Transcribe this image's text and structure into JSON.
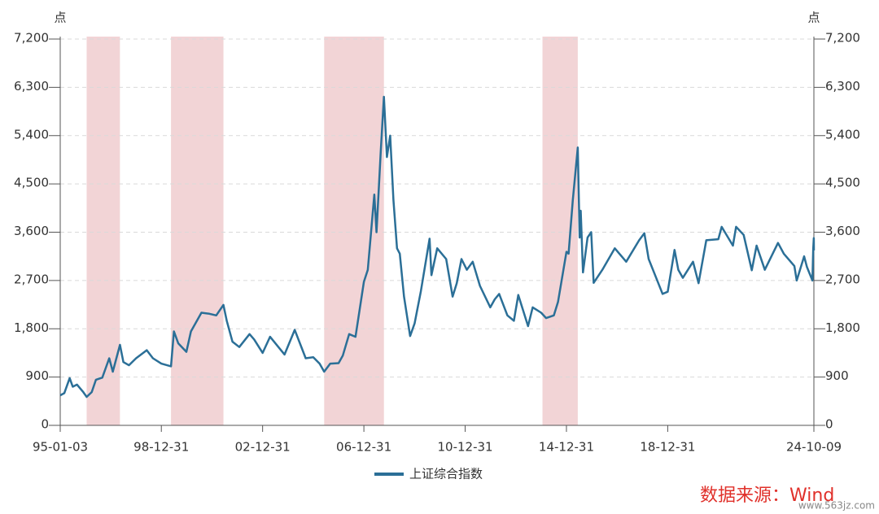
{
  "chart_data": {
    "type": "line",
    "y_unit": "点",
    "y2_unit": "点",
    "x": [
      "95-01-03",
      "95-03-01",
      "95-05-18",
      "95-07-01",
      "95-09-01",
      "95-12-01",
      "96-01-19",
      "96-04-01",
      "96-06-01",
      "96-09-01",
      "96-12-10",
      "97-02-01",
      "97-05-12",
      "97-07-01",
      "97-09-20",
      "98-01-01",
      "98-06-03",
      "98-09-01",
      "98-12-31",
      "99-05-18",
      "99-06-30",
      "99-09-01",
      "99-12-27",
      "00-03-01",
      "00-08-01",
      "00-11-23",
      "01-03-01",
      "01-06-13",
      "01-08-01",
      "01-10-22",
      "02-01-29",
      "02-06-25",
      "02-09-01",
      "02-12-31",
      "03-04-16",
      "03-11-13",
      "04-04-07",
      "04-09-13",
      "04-12-31",
      "05-04-01",
      "05-06-06",
      "05-09-01",
      "05-12-31",
      "06-03-01",
      "06-06-01",
      "06-09-01",
      "06-12-31",
      "07-02-27",
      "07-05-29",
      "07-06-30",
      "07-08-30",
      "07-10-16",
      "07-11-28",
      "08-01-14",
      "08-03-01",
      "08-04-22",
      "08-06-01",
      "08-08-01",
      "08-10-28",
      "09-01-01",
      "09-04-01",
      "09-08-04",
      "09-09-01",
      "09-11-24",
      "10-04-01",
      "10-07-02",
      "10-09-01",
      "10-11-08",
      "11-01-25",
      "11-04-18",
      "11-08-01",
      "11-12-28",
      "12-03-01",
      "12-05-04",
      "12-09-01",
      "12-12-03",
      "13-02-06",
      "13-06-25",
      "13-09-01",
      "13-12-31",
      "14-03-12",
      "14-07-01",
      "14-09-01",
      "14-12-31",
      "15-02-01",
      "15-04-01",
      "15-06-12",
      "15-07-08",
      "15-07-24",
      "15-08-26",
      "15-11-01",
      "15-12-23",
      "16-01-28",
      "16-06-01",
      "16-11-29",
      "17-05-11",
      "17-11-14",
      "18-01-29",
      "18-03-30",
      "18-07-01",
      "18-10-18",
      "18-12-31",
      "19-04-08",
      "19-06-01",
      "19-08-06",
      "19-12-31",
      "20-03-19",
      "20-07-09",
      "20-12-31",
      "21-02-18",
      "21-07-28",
      "21-09-13",
      "21-12-31",
      "22-04-26",
      "22-07-04",
      "22-10-31",
      "23-05-09",
      "23-08-01",
      "23-12-31",
      "24-02-05",
      "24-05-20",
      "24-07-01",
      "24-09-18",
      "24-09-30",
      "24-10-08",
      "24-10-09"
    ],
    "series": [
      {
        "name": "上证综合指数",
        "color": "#2b6f97",
        "values": [
          560,
          600,
          880,
          720,
          760,
          620,
          530,
          620,
          850,
          890,
          1250,
          1000,
          1500,
          1180,
          1120,
          1250,
          1400,
          1250,
          1150,
          1100,
          1750,
          1530,
          1370,
          1750,
          2100,
          2080,
          2050,
          2245,
          1950,
          1560,
          1460,
          1700,
          1600,
          1350,
          1650,
          1320,
          1780,
          1250,
          1270,
          1150,
          1000,
          1150,
          1160,
          1300,
          1700,
          1650,
          2675,
          2900,
          4300,
          3600,
          5100,
          6124,
          5000,
          5400,
          4200,
          3300,
          3200,
          2400,
          1664,
          1900,
          2500,
          3478,
          2800,
          3300,
          3100,
          2400,
          2650,
          3100,
          2900,
          3050,
          2600,
          2200,
          2350,
          2450,
          2050,
          1950,
          2430,
          1850,
          2200,
          2100,
          2000,
          2050,
          2300,
          3234,
          3200,
          4200,
          5178,
          3500,
          4000,
          2850,
          3500,
          3600,
          2655,
          2900,
          3300,
          3050,
          3450,
          3580,
          3100,
          2800,
          2450,
          2490,
          3270,
          2900,
          2750,
          3050,
          2650,
          3450,
          3470,
          3700,
          3350,
          3700,
          3550,
          2890,
          3350,
          2900,
          3400,
          3200,
          2970,
          2700,
          3150,
          2950,
          2700,
          3300,
          3490,
          3260
        ]
      }
    ],
    "xlim": [
      "95-01-03",
      "24-10-09"
    ],
    "xticks": [
      "95-01-03",
      "98-12-31",
      "02-12-31",
      "06-12-31",
      "10-12-31",
      "14-12-31",
      "18-12-31",
      "24-10-09"
    ],
    "ylim": [
      0,
      7200
    ],
    "yticks": [
      0,
      900,
      {
        "value": 1800,
        "label": "1,800"
      },
      {
        "value": 2700,
        "label": "2,700"
      },
      {
        "value": 3600,
        "label": "3,600"
      },
      {
        "value": 4500,
        "label": "4,500"
      },
      {
        "value": 5400,
        "label": "5,400"
      },
      {
        "value": 6300,
        "label": "6,300"
      },
      {
        "value": 7200,
        "label": "7,200"
      }
    ],
    "y2lim": [
      0,
      7200
    ],
    "y2ticks": [
      0,
      900,
      {
        "value": 1800,
        "label": "1,800"
      },
      {
        "value": 2700,
        "label": "2,700"
      },
      {
        "value": 3600,
        "label": "3,600"
      },
      {
        "value": 4500,
        "label": "4,500"
      },
      {
        "value": 5400,
        "label": "5,400"
      },
      {
        "value": 6300,
        "label": "6,300"
      },
      {
        "value": 7200,
        "label": "7,200"
      }
    ],
    "grid": true,
    "shaded_regions": [
      {
        "start": "96-01-19",
        "end": "97-05-12",
        "color": "#f2d4d6"
      },
      {
        "start": "99-05-18",
        "end": "01-06-14",
        "color": "#f2d4d6"
      },
      {
        "start": "05-06-06",
        "end": "07-10-16",
        "color": "#f2d4d6"
      },
      {
        "start": "14-01-20",
        "end": "15-06-12",
        "color": "#f2d4d6"
      }
    ],
    "legend": "bottom",
    "source": "数据来源：Wind",
    "watermark": "www.563jz.com"
  }
}
